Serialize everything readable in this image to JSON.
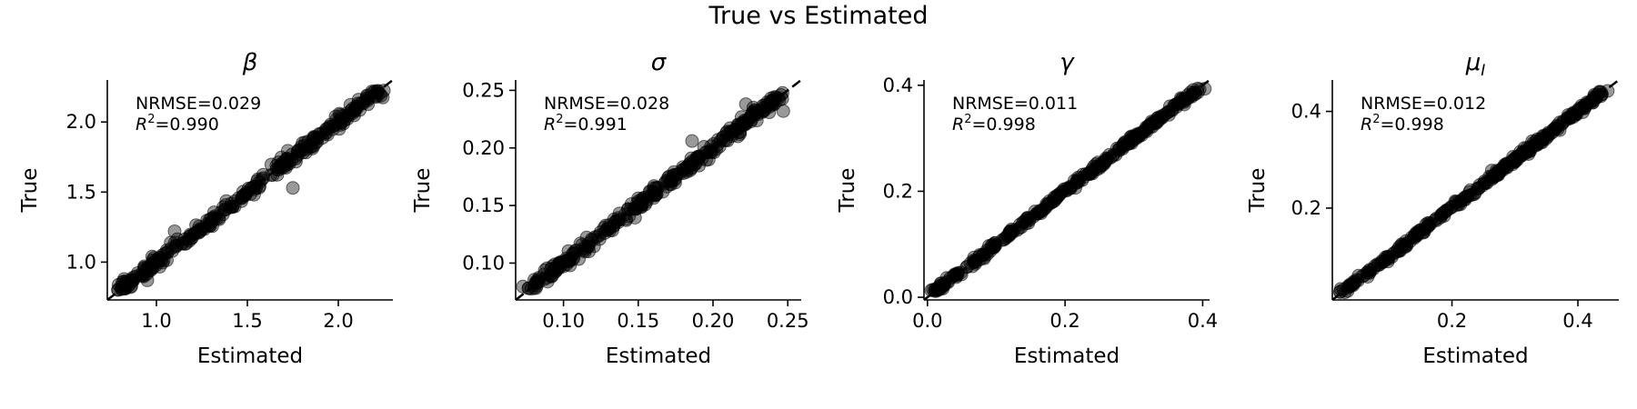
{
  "figure": {
    "title": "True vs Estimated"
  },
  "chart_data": [
    {
      "type": "scatter",
      "title": "β",
      "xlabel": "Estimated",
      "ylabel": "True",
      "xlim": [
        0.73,
        2.3
      ],
      "ylim": [
        0.73,
        2.3
      ],
      "xticks": [
        1.0,
        1.5,
        2.0
      ],
      "xtick_labels": [
        "1.0",
        "1.5",
        "2.0"
      ],
      "yticks": [
        1.0,
        1.5,
        2.0
      ],
      "ytick_labels": [
        "1.0",
        "1.5",
        "2.0"
      ],
      "annotation": {
        "metric_label": "NRMSE=0.029",
        "r2_value": "=0.990"
      },
      "identity_line": true,
      "point_color": "#000000",
      "point_alpha": 0.4,
      "range": [
        0.8,
        2.23
      ],
      "noise": 0.025,
      "n_points": 300,
      "outliers": [
        [
          1.75,
          1.53
        ],
        [
          0.95,
          0.87
        ],
        [
          2.2,
          2.22
        ],
        [
          1.1,
          1.22
        ]
      ],
      "grid": false
    },
    {
      "type": "scatter",
      "title": "σ",
      "xlabel": "Estimated",
      "ylabel": "True",
      "xlim": [
        0.068,
        0.259
      ],
      "ylim": [
        0.068,
        0.259
      ],
      "xticks": [
        0.1,
        0.15,
        0.2,
        0.25
      ],
      "xtick_labels": [
        "0.10",
        "0.15",
        "0.20",
        "0.25"
      ],
      "yticks": [
        0.1,
        0.15,
        0.2,
        0.25
      ],
      "ytick_labels": [
        "0.10",
        "0.15",
        "0.20",
        "0.25"
      ],
      "annotation": {
        "metric_label": "NRMSE=0.028",
        "r2_value": "=0.991"
      },
      "identity_line": true,
      "point_color": "#000000",
      "point_alpha": 0.4,
      "range": [
        0.077,
        0.248
      ],
      "noise": 0.003,
      "n_points": 300,
      "outliers": [
        [
          0.222,
          0.238
        ],
        [
          0.227,
          0.235
        ],
        [
          0.247,
          0.232
        ],
        [
          0.205,
          0.206
        ],
        [
          0.186,
          0.206
        ],
        [
          0.218,
          0.212
        ]
      ],
      "grid": false
    },
    {
      "type": "scatter",
      "title": "γ",
      "xlabel": "Estimated",
      "ylabel": "True",
      "xlim": [
        -0.005,
        0.41
      ],
      "ylim": [
        -0.005,
        0.41
      ],
      "xticks": [
        0.0,
        0.2,
        0.4
      ],
      "xtick_labels": [
        "0.0",
        "0.2",
        "0.4"
      ],
      "yticks": [
        0.0,
        0.2,
        0.4
      ],
      "ytick_labels": [
        "0.0",
        "0.2",
        "0.4"
      ],
      "annotation": {
        "metric_label": "NRMSE=0.011",
        "r2_value": "=0.998"
      },
      "identity_line": true,
      "point_color": "#000000",
      "point_alpha": 0.4,
      "range": [
        0.01,
        0.395
      ],
      "noise": 0.0035,
      "n_points": 300,
      "outliers": [],
      "grid": false
    },
    {
      "type": "scatter",
      "title": "μ",
      "title_subscript": "I",
      "xlabel": "Estimated",
      "ylabel": "True",
      "xlim": [
        0.01,
        0.465
      ],
      "ylim": [
        0.01,
        0.465
      ],
      "xticks": [
        0.2,
        0.4
      ],
      "xtick_labels": [
        "0.2",
        "0.4"
      ],
      "yticks": [
        0.2,
        0.4
      ],
      "ytick_labels": [
        "0.2",
        "0.4"
      ],
      "annotation": {
        "metric_label": "NRMSE=0.012",
        "r2_value": "=0.998"
      },
      "identity_line": true,
      "point_color": "#000000",
      "point_alpha": 0.4,
      "range": [
        0.025,
        0.445
      ],
      "noise": 0.004,
      "n_points": 300,
      "outliers": [],
      "grid": false
    }
  ]
}
